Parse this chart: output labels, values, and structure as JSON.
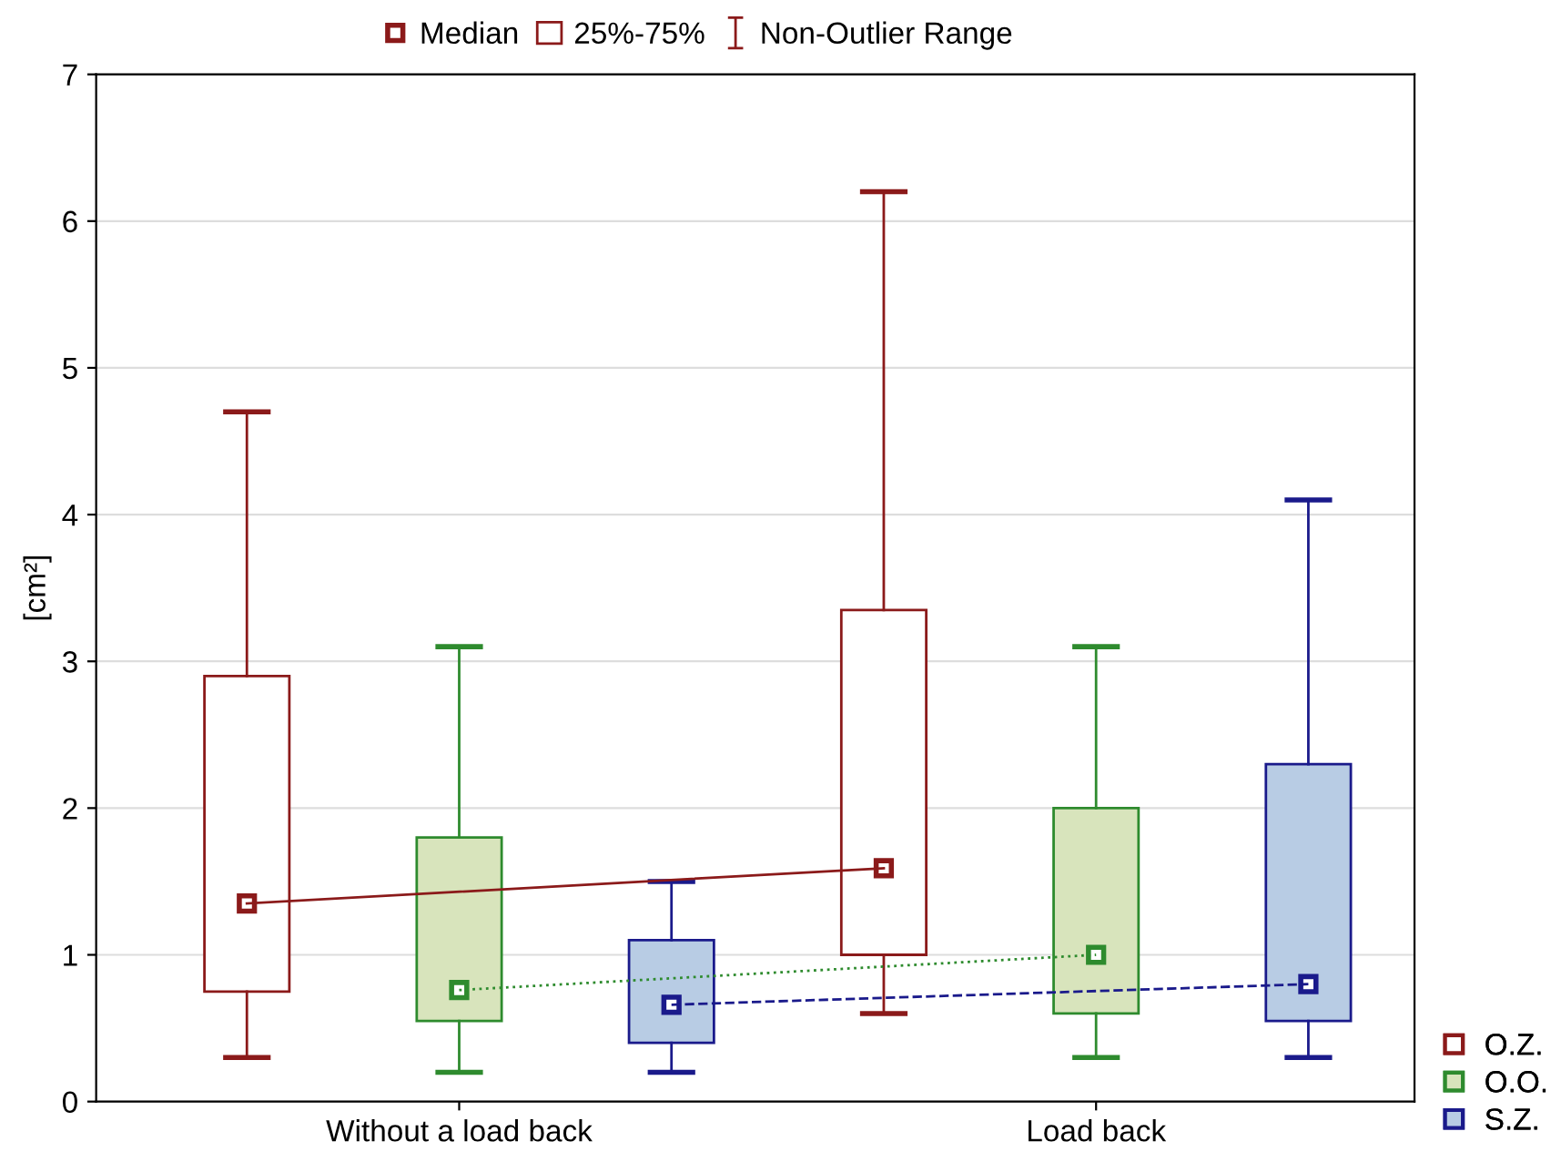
{
  "chart_data": {
    "type": "box",
    "ylabel": "[cm²]",
    "categories": [
      "Without a load back",
      "Load back"
    ],
    "ylim": [
      0,
      7
    ],
    "yticks": [
      0,
      1,
      2,
      3,
      4,
      5,
      6,
      7
    ],
    "grid": "y",
    "legend": "bottom right",
    "marker": "square",
    "annotations": [
      "Median",
      "25%-75%",
      "Non-Outlier Range"
    ],
    "series": [
      {
        "name": "O.Z.",
        "color": "#8b1a1a",
        "colors": [
          "#ffffff",
          "#ffffff"
        ],
        "boxes": [
          {
            "low": 0.3,
            "q1": 0.75,
            "median": 1.35,
            "q3": 2.9,
            "high": 4.7
          },
          {
            "low": 0.6,
            "q1": 1.0,
            "median": 1.59,
            "q3": 3.35,
            "high": 6.2
          }
        ]
      },
      {
        "name": "O.O.",
        "color": "#2e8b2e",
        "colors": [
          "#d8e4bc",
          "#d8e4bc"
        ],
        "boxes": [
          {
            "low": 0.2,
            "q1": 0.55,
            "median": 0.76,
            "q3": 1.8,
            "high": 3.1
          },
          {
            "low": 0.3,
            "q1": 0.6,
            "median": 1.0,
            "q3": 2.0,
            "high": 3.1
          }
        ]
      },
      {
        "name": "S.Z.",
        "color": "#1a1a8b",
        "colors": [
          "#b8cce4",
          "#b8cce4"
        ],
        "boxes": [
          {
            "low": 0.2,
            "q1": 0.4,
            "median": 0.66,
            "q3": 1.1,
            "high": 1.5
          },
          {
            "low": 0.3,
            "q1": 0.55,
            "median": 0.8,
            "q3": 2.3,
            "high": 4.1
          }
        ]
      },
      {
        "type": "line",
        "color": "#8b1a1a",
        "line_style": "solid",
        "marker": "none",
        "values": [
          1.35,
          1.59
        ]
      },
      {
        "type": "line",
        "color": "#2e8b2e",
        "line_style": "dotted",
        "marker": "none",
        "values": [
          0.76,
          1.0
        ]
      },
      {
        "type": "line",
        "color": "#1a1a8b",
        "line_style": "dashed",
        "marker": "none",
        "values": [
          0.66,
          0.8
        ]
      }
    ]
  }
}
